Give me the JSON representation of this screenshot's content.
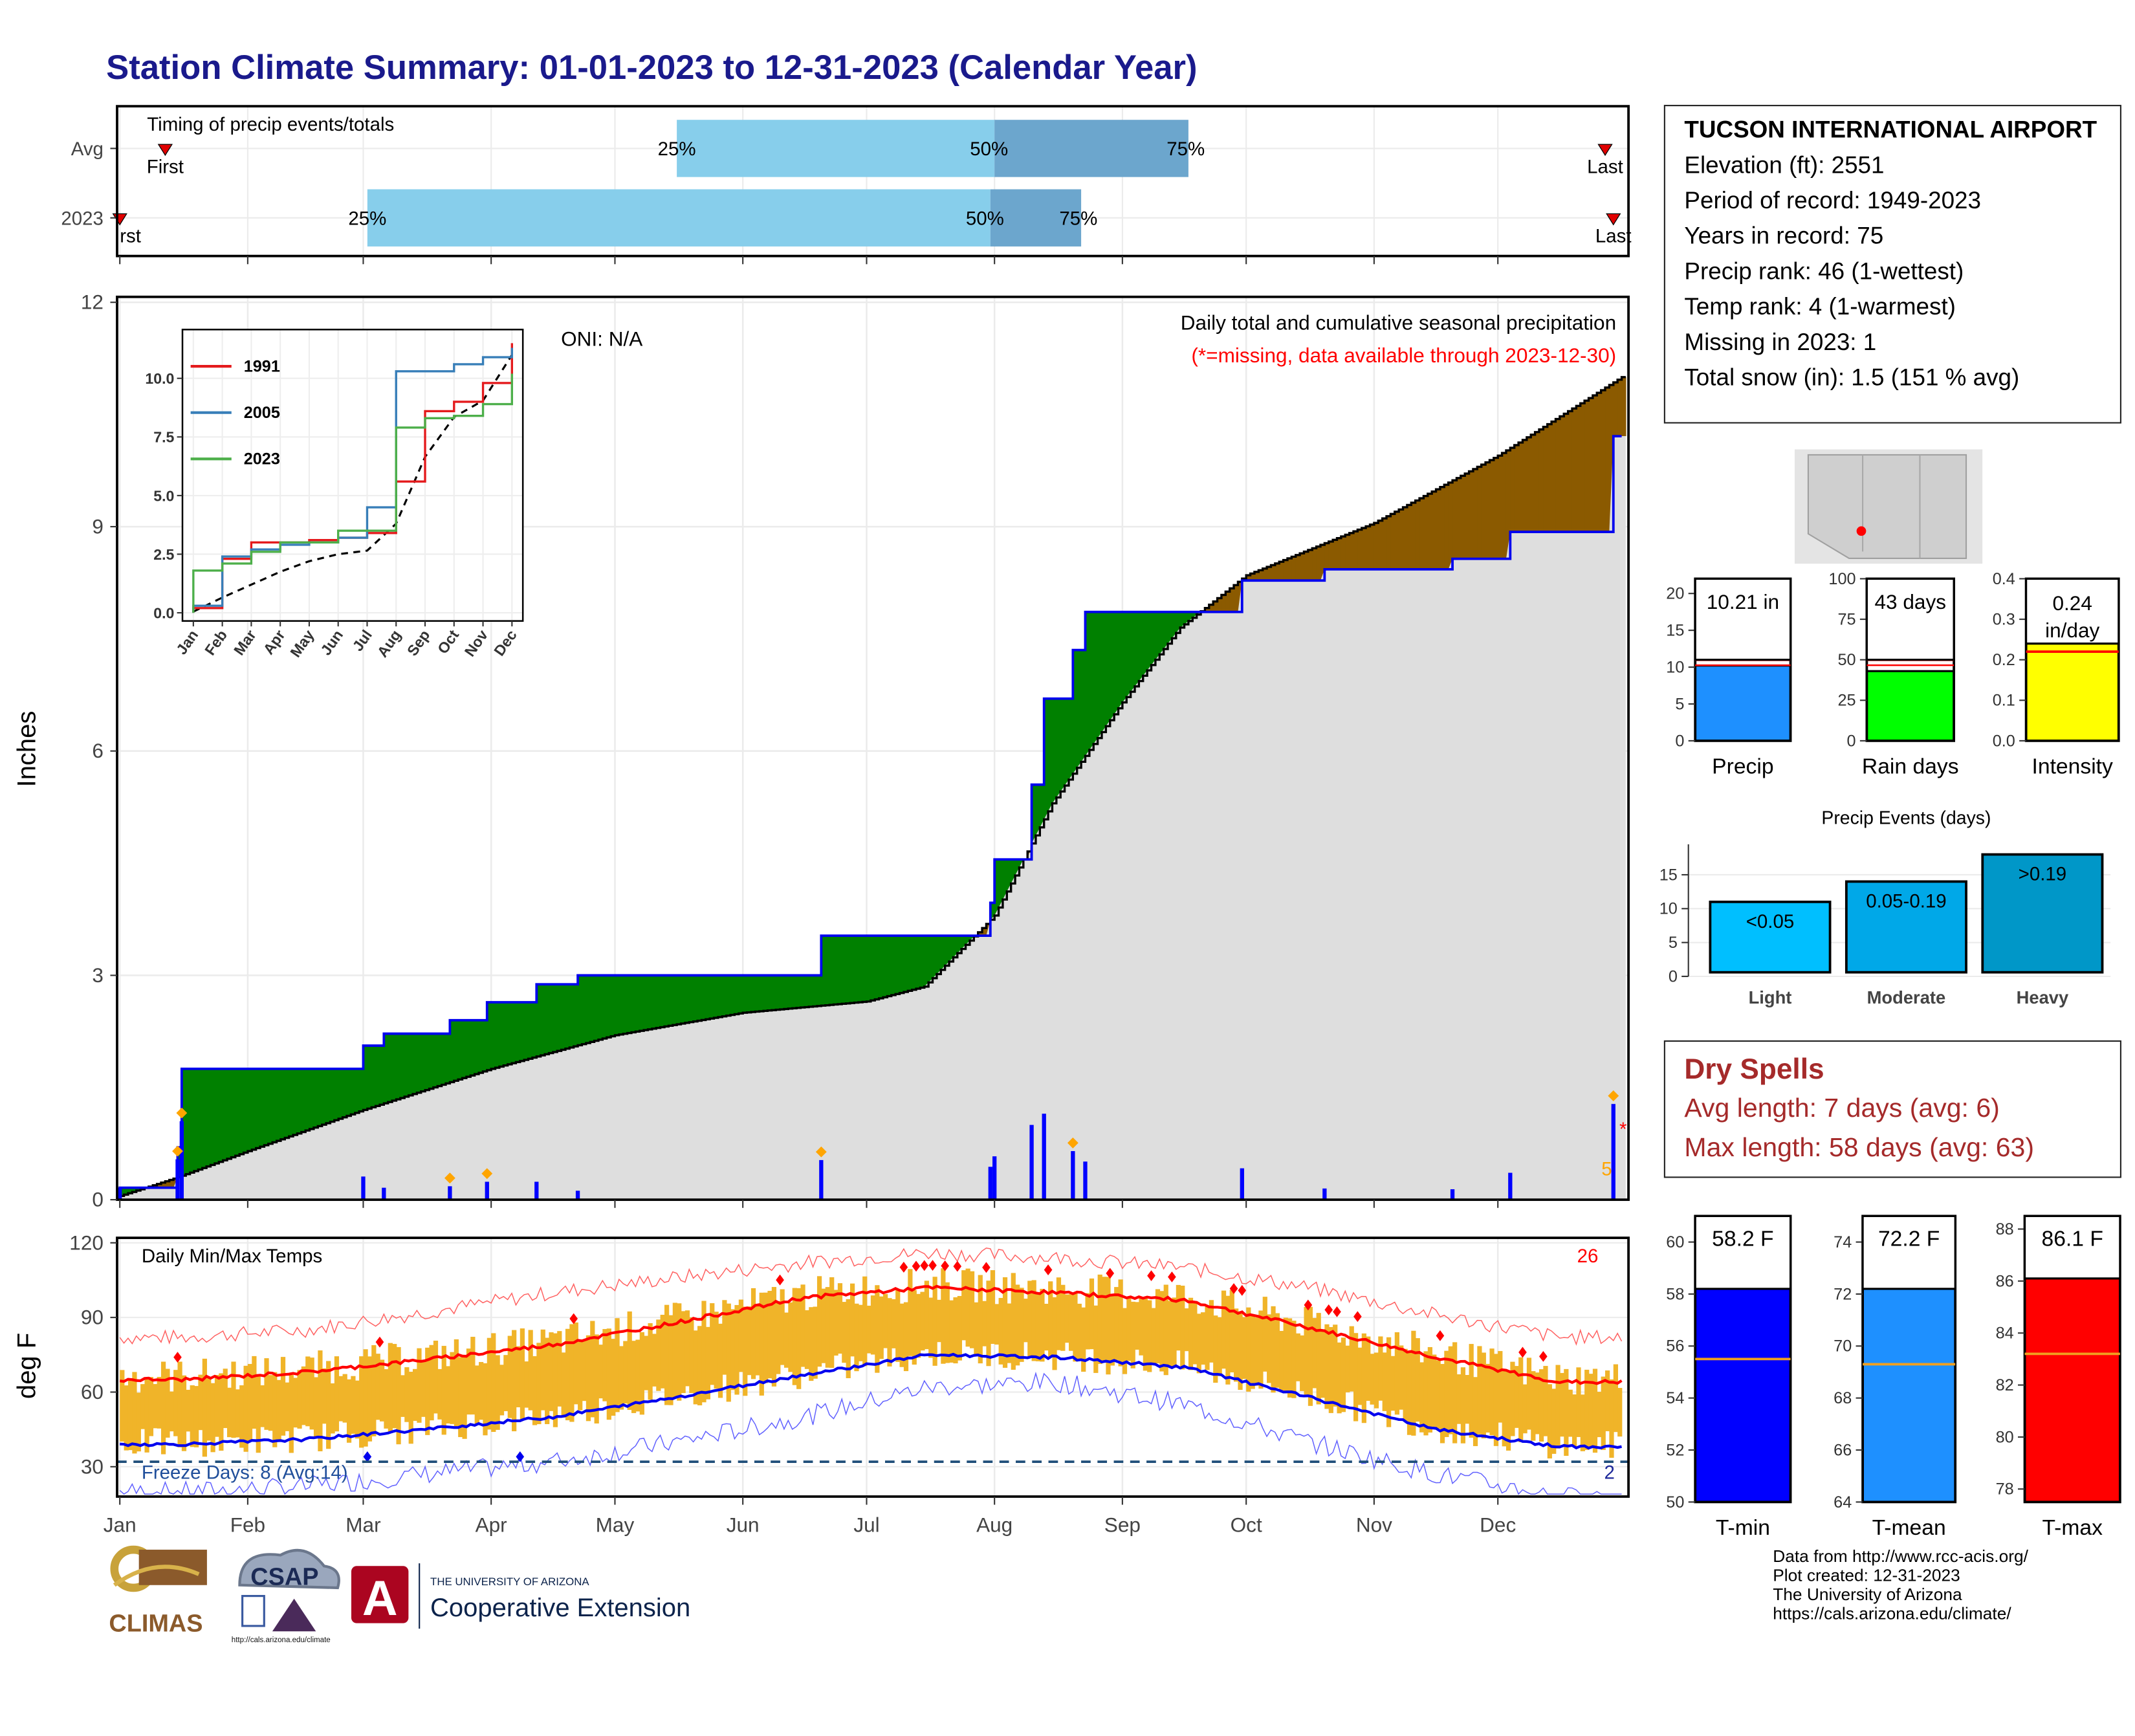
{
  "title": "Station Climate Summary: 01-01-2023 to 12-31-2023 (Calendar Year)",
  "station": {
    "name": "TUCSON INTERNATIONAL AIRPORT",
    "elevation": "Elevation (ft): 2551",
    "period": "Period of record: 1949-2023",
    "years": "Years in record: 75",
    "precip_rank": "Precip rank: 46 (1-wettest)",
    "temp_rank": "Temp rank: 4 (1-warmest)",
    "missing": "Missing in 2023: 1",
    "snow": "Total snow (in): 1.5 (151 % avg)"
  },
  "dry_spells": {
    "heading": "Dry Spells",
    "avg": "Avg length: 7 days (avg: 6)",
    "max": "Max length: 58 days (avg: 63)"
  },
  "credits": [
    "Data from http://www.rcc-acis.org/",
    "Plot created: 12-31-2023",
    "The University of Arizona",
    "https://cals.arizona.edu/climate/"
  ],
  "logos": {
    "climas": "CLIMAS",
    "csap": "CSAP",
    "csap_url": "http://cals.arizona.edu/climate",
    "ua_small": "THE UNIVERSITY OF ARIZONA",
    "ua_big": "Cooperative Extension",
    "ua_letter": "A"
  },
  "colors": {
    "title": "#1a1a8c",
    "dry": "#a52a2a",
    "wet": "#008000",
    "dry_fill": "#8b5a00",
    "obs_line": "#0000ee",
    "temp_bar": "#f0b429",
    "tmax": "#ff0000",
    "tmin": "#0000ee"
  },
  "chart_data": [
    {
      "id": "timing",
      "type": "bar",
      "title": "Timing of precip events/totals",
      "categories": [
        "Avg",
        "2023"
      ],
      "avg": {
        "first": "Jan 12",
        "p25": "May 16",
        "p50": "Aug 1",
        "p75": "Sep 17",
        "last": "Dec 27"
      },
      "y2023": {
        "first": "Jan 1",
        "p25": "Mar 2",
        "p50": "Jul 31",
        "p75": "Aug 22",
        "last": "Dec 29"
      },
      "labels": {
        "first": "First",
        "last": "Last",
        "first_cut": "rst",
        "p25": "25%",
        "p50": "50%",
        "p75": "75%"
      }
    },
    {
      "id": "cumulative",
      "type": "area",
      "title": "Daily total and cumulative seasonal precipitation",
      "subtitle": "(*=missing, data available through 2023-12-30)",
      "oni": "ONI: N/A",
      "ylabel": "Inches",
      "ylim": [
        0,
        12
      ],
      "yticks": [
        0,
        3,
        6,
        9,
        12
      ],
      "months": [
        "Jan",
        "Feb",
        "Mar",
        "Apr",
        "May",
        "Jun",
        "Jul",
        "Aug",
        "Sep",
        "Oct",
        "Nov",
        "Dec"
      ],
      "observed_2023": [
        [
          "01-01",
          0
        ],
        [
          "01-01",
          0.16
        ],
        [
          "01-15",
          0.16
        ],
        [
          "01-15",
          0.7
        ],
        [
          "01-16",
          0.7
        ],
        [
          "01-16",
          1.75
        ],
        [
          "03-01",
          1.75
        ],
        [
          "03-01",
          2.06
        ],
        [
          "03-06",
          2.06
        ],
        [
          "03-06",
          2.22
        ],
        [
          "03-22",
          2.22
        ],
        [
          "03-22",
          2.4
        ],
        [
          "03-31",
          2.4
        ],
        [
          "03-31",
          2.64
        ],
        [
          "04-12",
          2.64
        ],
        [
          "04-12",
          2.88
        ],
        [
          "04-22",
          2.88
        ],
        [
          "04-22",
          3.0
        ],
        [
          "06-20",
          3.0
        ],
        [
          "06-20",
          3.53
        ],
        [
          "07-31",
          3.53
        ],
        [
          "07-31",
          3.97
        ],
        [
          "08-01",
          3.97
        ],
        [
          "08-01",
          4.55
        ],
        [
          "08-10",
          4.55
        ],
        [
          "08-10",
          5.55
        ],
        [
          "08-13",
          5.55
        ],
        [
          "08-13",
          6.7
        ],
        [
          "08-20",
          6.7
        ],
        [
          "08-20",
          7.35
        ],
        [
          "08-23",
          7.35
        ],
        [
          "08-23",
          7.86
        ],
        [
          "09-30",
          7.86
        ],
        [
          "09-30",
          8.28
        ],
        [
          "10-20",
          8.28
        ],
        [
          "10-20",
          8.43
        ],
        [
          "11-20",
          8.43
        ],
        [
          "11-20",
          8.57
        ],
        [
          "12-04",
          8.57
        ],
        [
          "12-04",
          8.93
        ],
        [
          "12-29",
          8.93
        ],
        [
          "12-29",
          10.21
        ],
        [
          "12-31",
          10.21
        ]
      ],
      "average_cumulative": [
        [
          "01-01",
          0.05
        ],
        [
          "01-15",
          0.3
        ],
        [
          "02-01",
          0.65
        ],
        [
          "03-01",
          1.2
        ],
        [
          "04-01",
          1.75
        ],
        [
          "05-01",
          2.2
        ],
        [
          "06-01",
          2.5
        ],
        [
          "07-01",
          2.65
        ],
        [
          "07-15",
          2.85
        ],
        [
          "08-01",
          3.8
        ],
        [
          "08-15",
          5.3
        ],
        [
          "09-01",
          6.65
        ],
        [
          "09-15",
          7.65
        ],
        [
          "10-01",
          8.35
        ],
        [
          "11-01",
          9.05
        ],
        [
          "12-01",
          9.95
        ],
        [
          "12-31",
          11.0
        ]
      ],
      "daily_markers": [
        "01-15",
        "01-16",
        "03-22",
        "03-31",
        "06-20",
        "08-20",
        "12-29"
      ],
      "extreme_count": "5",
      "missing_mark": "*"
    },
    {
      "id": "inset",
      "type": "line",
      "xticks": [
        "Jan",
        "Feb",
        "Mar",
        "Apr",
        "May",
        "Jun",
        "Jul",
        "Aug",
        "Sep",
        "Oct",
        "Nov",
        "Dec"
      ],
      "yticks": [
        "0.0",
        "2.5",
        "5.0",
        "7.5",
        "10.0"
      ],
      "ylim": [
        0,
        11.5
      ],
      "series": [
        {
          "name": "1991",
          "color": "#e41a1c",
          "values": [
            0.2,
            2.3,
            3.0,
            3.0,
            3.1,
            3.2,
            3.4,
            5.6,
            8.6,
            9.0,
            9.8,
            11.5
          ]
        },
        {
          "name": "2005",
          "color": "#377eb8",
          "values": [
            0.3,
            2.4,
            2.7,
            2.9,
            3.0,
            3.2,
            4.5,
            10.3,
            10.3,
            10.6,
            10.9,
            11.3
          ]
        },
        {
          "name": "2023",
          "color": "#4daf4a",
          "values": [
            1.8,
            2.1,
            2.6,
            3.0,
            3.0,
            3.5,
            3.5,
            7.9,
            8.3,
            8.4,
            8.9,
            10.2
          ]
        }
      ]
    },
    {
      "id": "temps",
      "type": "line",
      "title": "Daily Min/Max Temps",
      "ylabel": "deg F",
      "ylim": [
        18,
        122
      ],
      "yticks": [
        30,
        60,
        90,
        120
      ],
      "freeze_line": 32,
      "freeze_label": "Freeze Days: 8 (Avg:14)",
      "freeze_count": "2",
      "hot_count": "26",
      "avg_tmax_monthly": [
        65,
        68,
        73,
        79,
        88,
        98,
        102,
        100,
        97,
        86,
        74,
        64
      ],
      "avg_tmin_monthly": [
        39,
        41,
        45,
        50,
        58,
        67,
        75,
        74,
        70,
        58,
        45,
        38
      ],
      "record_tmax_monthly": [
        82,
        85,
        92,
        100,
        106,
        112,
        116,
        114,
        110,
        102,
        91,
        82
      ],
      "record_tmin_monthly": [
        20,
        22,
        27,
        32,
        40,
        50,
        62,
        64,
        55,
        40,
        27,
        18
      ]
    },
    {
      "id": "precip_gauge",
      "type": "bar",
      "ticks": [
        0,
        5,
        10,
        15,
        20
      ],
      "ylim": [
        0,
        22
      ],
      "value": 10.21,
      "avg": 11.0,
      "label": "10.21 in",
      "xlabel": "Precip",
      "color": "#1e90ff"
    },
    {
      "id": "raindays_gauge",
      "type": "bar",
      "ticks": [
        0,
        25,
        50,
        75,
        100
      ],
      "ylim": [
        0,
        100
      ],
      "value": 43,
      "avg": 50,
      "label": "43 days",
      "xlabel": "Rain days",
      "color": "#00ff00"
    },
    {
      "id": "intensity_gauge",
      "type": "bar",
      "ticks": [
        "0.0",
        "0.1",
        "0.2",
        "0.3",
        "0.4"
      ],
      "ylim": [
        0,
        0.4
      ],
      "value": 0.24,
      "avg": 0.22,
      "label": "0.24",
      "label2": "in/day",
      "xlabel": "Intensity",
      "color": "#ffff00"
    },
    {
      "id": "events",
      "type": "bar",
      "title": "Precip Events (days)",
      "categories": [
        "Light",
        "Moderate",
        "Heavy"
      ],
      "values": [
        11,
        14,
        18
      ],
      "bar_labels": [
        "<0.05",
        "0.05-0.19",
        ">0.19"
      ],
      "yticks": [
        0,
        5,
        10,
        15
      ],
      "ylim": [
        0,
        19.5
      ],
      "colors": [
        "#00bfff",
        "#00a8e8",
        "#0097c8"
      ]
    },
    {
      "id": "tmin_gauge",
      "type": "bar",
      "ticks": [
        50,
        52,
        54,
        56,
        58,
        60
      ],
      "ylim": [
        50,
        61
      ],
      "value": 58.2,
      "avg": 55.5,
      "label": "58.2 F",
      "xlabel": "T-min",
      "color": "#0000ff"
    },
    {
      "id": "tmean_gauge",
      "type": "bar",
      "ticks": [
        64,
        66,
        68,
        70,
        72,
        74
      ],
      "ylim": [
        64,
        75
      ],
      "value": 72.2,
      "avg": 69.3,
      "label": "72.2 F",
      "xlabel": "T-mean",
      "color": "#1e90ff"
    },
    {
      "id": "tmax_gauge",
      "type": "bar",
      "ticks": [
        78,
        80,
        82,
        84,
        86,
        88
      ],
      "ylim": [
        77.5,
        88.5
      ],
      "value": 86.1,
      "avg": 83.2,
      "label": "86.1 F",
      "xlabel": "T-max",
      "color": "#ff0000"
    }
  ]
}
